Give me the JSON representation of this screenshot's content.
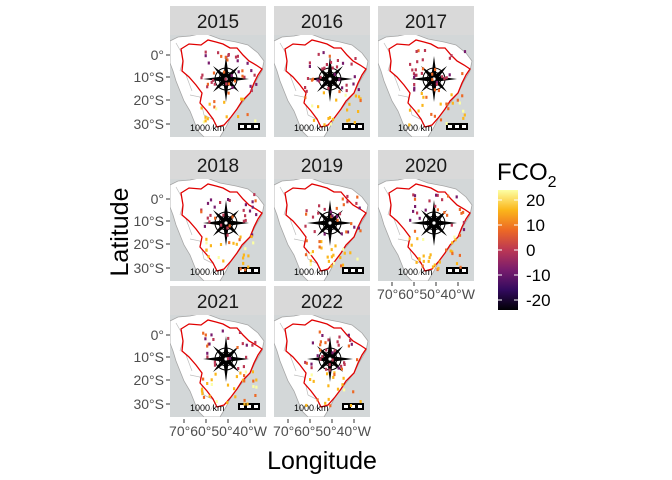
{
  "chart_data": {
    "type": "map",
    "facets": [
      "2015",
      "2016",
      "2017",
      "2018",
      "2019",
      "2020",
      "2021",
      "2022"
    ],
    "xlabel": "Longitude",
    "ylabel": "Latitude",
    "x_ticks": [
      "70°W",
      "60°W",
      "50°W",
      "40°W"
    ],
    "y_ticks": [
      "0°",
      "10°S",
      "20°S",
      "30°S"
    ],
    "x_tick_display": [
      "70°60°50°40°W",
      "70°60°50°40°W",
      "70°60°50°40°W"
    ],
    "legend": {
      "title": "FCO",
      "title_subscript": "2",
      "ticks": [
        "20",
        "10",
        "0",
        "-10",
        "-20"
      ],
      "tick_values": [
        20,
        10,
        0,
        -10,
        -20
      ],
      "range": [
        -24,
        24
      ],
      "palette": "inferno",
      "colors": [
        "#000004",
        "#320a5e",
        "#781c6d",
        "#bb3754",
        "#ed6925",
        "#fbb61a",
        "#fcffa4"
      ]
    },
    "scale_bar_label": "1000 km",
    "map_colors": {
      "panel_background": "#d3d7d8",
      "land": "#ffffff",
      "country_border": "#a6a6a6",
      "brazil_border": "#e00000",
      "strip": "#d9d9d9"
    }
  }
}
